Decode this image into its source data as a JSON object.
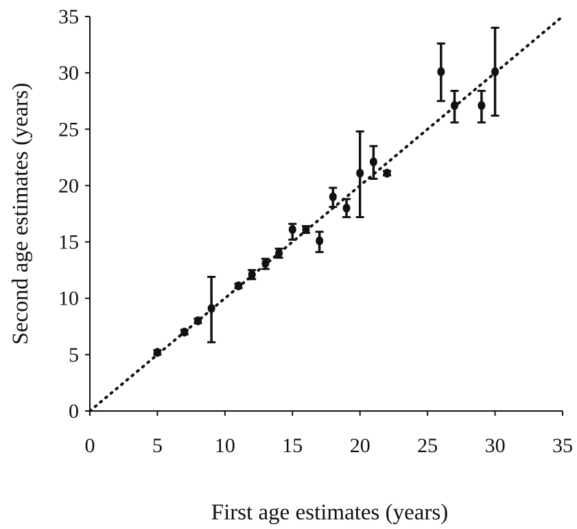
{
  "chart_data": {
    "type": "scatter",
    "title": "",
    "xlabel": "First age estimates (years)",
    "ylabel": "Second age estimates (years)",
    "xlim": [
      0,
      35
    ],
    "ylim": [
      0,
      35
    ],
    "xticks": [
      0,
      5,
      10,
      15,
      20,
      25,
      30,
      35
    ],
    "yticks": [
      0,
      5,
      10,
      15,
      20,
      25,
      30,
      35
    ],
    "xtick_labels": [
      "0",
      "5",
      "10",
      "15",
      "20",
      "25",
      "30",
      "35"
    ],
    "ytick_labels": [
      "0",
      "5",
      "10",
      "15",
      "20",
      "25",
      "30",
      "35"
    ],
    "grid": false,
    "legend": "none",
    "reference_line": {
      "x": [
        0,
        35
      ],
      "y": [
        0,
        35
      ],
      "style": "dotted"
    },
    "points": [
      {
        "x": 5,
        "y": 5.2,
        "err_low": 5.0,
        "err_high": 5.4
      },
      {
        "x": 7,
        "y": 7.0,
        "err_low": 6.8,
        "err_high": 7.2
      },
      {
        "x": 8,
        "y": 8.0,
        "err_low": 7.8,
        "err_high": 8.2
      },
      {
        "x": 9,
        "y": 9.1,
        "err_low": 6.1,
        "err_high": 11.9
      },
      {
        "x": 11,
        "y": 11.1,
        "err_low": 10.9,
        "err_high": 11.3
      },
      {
        "x": 12,
        "y": 12.1,
        "err_low": 11.7,
        "err_high": 12.5
      },
      {
        "x": 13,
        "y": 13.1,
        "err_low": 12.6,
        "err_high": 13.5
      },
      {
        "x": 14,
        "y": 14.0,
        "err_low": 13.6,
        "err_high": 14.4
      },
      {
        "x": 15,
        "y": 16.1,
        "err_low": 15.2,
        "err_high": 16.6
      },
      {
        "x": 16,
        "y": 16.1,
        "err_low": 15.8,
        "err_high": 16.4
      },
      {
        "x": 17,
        "y": 15.1,
        "err_low": 14.1,
        "err_high": 15.9
      },
      {
        "x": 18,
        "y": 19.0,
        "err_low": 18.1,
        "err_high": 19.8
      },
      {
        "x": 19,
        "y": 18.0,
        "err_low": 17.2,
        "err_high": 18.8
      },
      {
        "x": 20,
        "y": 21.1,
        "err_low": 17.2,
        "err_high": 24.8
      },
      {
        "x": 21,
        "y": 22.1,
        "err_low": 20.6,
        "err_high": 23.5
      },
      {
        "x": 22,
        "y": 21.1,
        "err_low": 20.9,
        "err_high": 21.3
      },
      {
        "x": 26,
        "y": 30.1,
        "err_low": 27.5,
        "err_high": 32.6
      },
      {
        "x": 27,
        "y": 27.1,
        "err_low": 25.6,
        "err_high": 28.4
      },
      {
        "x": 29,
        "y": 27.1,
        "err_low": 25.6,
        "err_high": 28.4
      },
      {
        "x": 30,
        "y": 30.1,
        "err_low": 26.2,
        "err_high": 34.0
      }
    ]
  }
}
